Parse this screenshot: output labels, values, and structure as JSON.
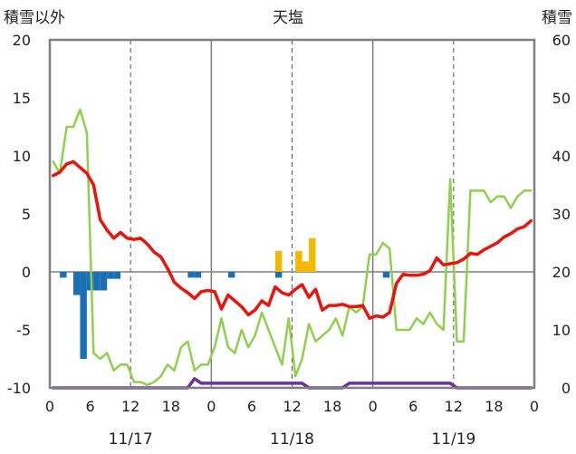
{
  "chart_data": {
    "type": "line",
    "title": "天塩",
    "left_axis_label": "積雪以外",
    "right_axis_label": "積雪",
    "left_ylim": [
      -10,
      20
    ],
    "right_ylim": [
      0,
      60
    ],
    "left_yticks": [
      "20",
      "15",
      "10",
      "5",
      "0",
      "-5",
      "-10"
    ],
    "right_yticks": [
      "60",
      "50",
      "40",
      "30",
      "20",
      "10",
      "0"
    ],
    "xlim": [
      0,
      72
    ],
    "x_tick_labels": [
      "0",
      "6",
      "12",
      "18",
      "0",
      "6",
      "12",
      "18",
      "0",
      "6",
      "12",
      "18",
      "0"
    ],
    "date_labels": [
      "11/17",
      "11/18",
      "11/19"
    ],
    "grid": "vertical: solid at 0h each day, dashed at 12h",
    "colors": {
      "temperature": "#e8140e",
      "snow_depth": "#8fd14f",
      "precip_snow": "#1b6fb5",
      "precip_rain": "#f5b800",
      "sunshine": "#7030a0",
      "axes": "#7f7f7f"
    },
    "series": [
      {
        "key": "temperature",
        "axis": "left",
        "values": [
          8.3,
          8.6,
          9.3,
          9.5,
          9.0,
          8.5,
          7.5,
          4.5,
          3.6,
          2.9,
          3.4,
          2.9,
          2.8,
          2.9,
          2.4,
          1.7,
          1.3,
          0.3,
          -0.9,
          -1.4,
          -1.8,
          -2.3,
          -1.7,
          -1.6,
          -1.7,
          -3.2,
          -2.0,
          -2.5,
          -3.0,
          -3.7,
          -3.3,
          -2.5,
          -2.9,
          -1.3,
          -1.8,
          -2.0,
          -1.5,
          -1.1,
          -2.2,
          -1.5,
          -3.3,
          -2.9,
          -2.9,
          -2.8,
          -3.0,
          -3.0,
          -2.9,
          -4.0,
          -3.8,
          -3.9,
          -3.5,
          -1.0,
          -0.2,
          -0.3,
          -0.3,
          -0.2,
          0.1,
          1.2,
          0.6,
          0.7,
          0.8,
          1.1,
          1.6,
          1.5,
          1.9,
          2.2,
          2.5,
          3.0,
          3.3,
          3.7,
          3.9,
          4.4
        ]
      },
      {
        "key": "snow_depth",
        "axis": "right",
        "values": [
          39,
          37,
          45,
          45,
          48,
          44,
          6,
          5,
          6,
          3,
          4,
          4,
          1,
          1,
          0.5,
          1,
          2,
          4,
          3,
          7,
          8,
          3,
          4,
          4,
          7,
          12,
          7,
          6,
          10,
          7,
          9,
          13,
          10,
          7,
          4,
          12,
          2,
          5,
          11,
          8,
          9,
          10,
          12,
          9,
          14,
          13,
          14,
          23,
          23,
          25,
          24,
          10,
          10,
          10,
          12,
          11,
          13,
          11,
          10,
          36,
          8,
          8,
          34,
          34,
          34,
          32,
          33,
          33,
          31,
          33,
          34,
          34
        ]
      },
      {
        "key": "sunshine",
        "axis": "left",
        "values": [
          -10,
          -10,
          -10,
          -10,
          -10,
          -10,
          -10,
          -10,
          -10,
          -10,
          -10,
          -10,
          -10,
          -10,
          -10,
          -10,
          -10,
          -10,
          -10,
          -10,
          -10,
          -9.2,
          -9.6,
          -9.6,
          -9.6,
          -9.6,
          -9.6,
          -9.6,
          -9.6,
          -9.6,
          -9.6,
          -9.6,
          -9.6,
          -9.6,
          -9.6,
          -9.6,
          -9.6,
          -9.6,
          -10,
          -10,
          -10,
          -10,
          -10,
          -10,
          -9.6,
          -9.6,
          -9.6,
          -9.6,
          -9.6,
          -9.6,
          -9.6,
          -9.6,
          -9.6,
          -9.6,
          -9.6,
          -9.6,
          -9.6,
          -9.6,
          -9.6,
          -9.6,
          -10,
          -10,
          -10,
          -10,
          -10,
          -10,
          -10,
          -10,
          -10,
          -10,
          -10,
          -10
        ]
      }
    ],
    "precip_snow_bars": [
      {
        "hour": 2,
        "value": -0.5
      },
      {
        "hour": 4,
        "value": -2.0
      },
      {
        "hour": 5,
        "value": -7.5
      },
      {
        "hour": 6,
        "value": -1.6
      },
      {
        "hour": 7,
        "value": -1.6
      },
      {
        "hour": 8,
        "value": -1.6
      },
      {
        "hour": 9,
        "value": -0.6
      },
      {
        "hour": 10,
        "value": -0.6
      },
      {
        "hour": 21,
        "value": -0.5
      },
      {
        "hour": 22,
        "value": -0.5
      },
      {
        "hour": 27,
        "value": -0.5
      },
      {
        "hour": 34,
        "value": -0.5
      },
      {
        "hour": 50,
        "value": -0.5
      }
    ],
    "precip_rain_bars": [
      {
        "hour": 34,
        "value": 1.8
      },
      {
        "hour": 37,
        "value": 1.8
      },
      {
        "hour": 38,
        "value": 0.9
      },
      {
        "hour": 39,
        "value": 2.9
      }
    ]
  }
}
